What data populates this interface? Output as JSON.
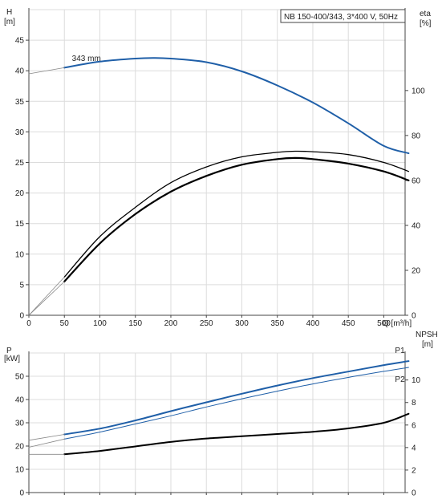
{
  "chart_data": [
    {
      "type": "line",
      "title": "NB 150-400/343, 3*400 V, 50Hz",
      "xlabel": "Q [m³/h]",
      "xlim": [
        0,
        530
      ],
      "xticks": [
        0,
        50,
        100,
        150,
        200,
        250,
        300,
        350,
        400,
        450,
        500
      ],
      "grid": true,
      "left_axis": {
        "label_line1": "H",
        "label_line2": "[m]",
        "ylim": [
          0,
          50
        ],
        "ticks": [
          0,
          5,
          10,
          15,
          20,
          25,
          30,
          35,
          40,
          45
        ]
      },
      "right_axis": {
        "label_line1": "eta",
        "label_line2": "[%]",
        "ylim": [
          0,
          136
        ],
        "ticks": [
          0,
          20,
          40,
          60,
          80,
          100
        ]
      },
      "annotations": [
        {
          "text": "343 mm",
          "x": 55,
          "y": 41.2
        }
      ],
      "series": [
        {
          "axis": "left",
          "color": "#1f5fa8",
          "width": 2,
          "x": [
            50,
            100,
            150,
            175,
            200,
            250,
            300,
            350,
            400,
            450,
            500,
            535
          ],
          "y": [
            40.5,
            41.5,
            42.0,
            42.1,
            42.0,
            41.4,
            39.9,
            37.6,
            34.8,
            31.4,
            27.7,
            26.5
          ]
        },
        {
          "axis": "left",
          "color": "#888888",
          "width": 0.8,
          "x": [
            0,
            50
          ],
          "y": [
            39.5,
            40.5
          ]
        },
        {
          "axis": "right",
          "color": "#000000",
          "width": 1.3,
          "x": [
            50,
            100,
            150,
            200,
            250,
            300,
            350,
            375,
            400,
            450,
            500,
            535
          ],
          "y": [
            17,
            35,
            48,
            59,
            66,
            70.5,
            72.5,
            73,
            72.8,
            71.5,
            68,
            64
          ]
        },
        {
          "axis": "right",
          "color": "#000000",
          "width": 2.2,
          "x": [
            50,
            100,
            150,
            200,
            250,
            300,
            350,
            375,
            400,
            450,
            500,
            535
          ],
          "y": [
            15,
            32,
            45,
            55,
            62,
            67,
            69.5,
            70,
            69.5,
            67.5,
            64,
            60
          ]
        },
        {
          "axis": "right",
          "color": "#888888",
          "width": 0.8,
          "x": [
            0,
            50
          ],
          "y": [
            0,
            17
          ]
        },
        {
          "axis": "right",
          "color": "#888888",
          "width": 0.8,
          "x": [
            0,
            50
          ],
          "y": [
            0,
            15
          ]
        }
      ]
    },
    {
      "type": "line",
      "xlim": [
        0,
        530
      ],
      "xticks": [
        0,
        50,
        100,
        150,
        200,
        250,
        300,
        350,
        400,
        450,
        500
      ],
      "grid": true,
      "left_axis": {
        "label_line1": "P",
        "label_line2": "[kW]",
        "ylim": [
          0,
          60
        ],
        "ticks": [
          0,
          10,
          20,
          30,
          40,
          50
        ]
      },
      "right_axis": {
        "label_line1": "NPSH",
        "label_line2": "[m]",
        "ylim": [
          0,
          12.4
        ],
        "ticks": [
          0,
          2,
          4,
          6,
          8,
          10
        ]
      },
      "series": [
        {
          "name": "P1",
          "axis": "left",
          "color": "#1f5fa8",
          "width": 2,
          "x": [
            50,
            100,
            150,
            200,
            250,
            300,
            350,
            400,
            450,
            500,
            535
          ],
          "y": [
            25,
            27.5,
            31,
            35,
            38.8,
            42.5,
            46,
            49.2,
            52,
            54.8,
            56.5
          ]
        },
        {
          "name": "P2",
          "axis": "left",
          "color": "#1f5fa8",
          "width": 1,
          "x": [
            50,
            100,
            150,
            200,
            250,
            300,
            350,
            400,
            450,
            500,
            535
          ],
          "y": [
            23,
            26,
            29.5,
            33,
            36.8,
            40.3,
            43.6,
            46.7,
            49.5,
            52.1,
            53.8
          ]
        },
        {
          "axis": "right",
          "color": "#000000",
          "width": 2,
          "x": [
            50,
            100,
            150,
            200,
            250,
            300,
            350,
            400,
            450,
            500,
            535
          ],
          "y": [
            3.4,
            3.7,
            4.1,
            4.5,
            4.8,
            5.0,
            5.2,
            5.4,
            5.7,
            6.2,
            7.0
          ]
        },
        {
          "axis": "left",
          "color": "#888888",
          "width": 0.8,
          "x": [
            0,
            50
          ],
          "y": [
            22.5,
            25
          ]
        },
        {
          "axis": "left",
          "color": "#888888",
          "width": 0.8,
          "x": [
            0,
            50
          ],
          "y": [
            19.5,
            23
          ]
        },
        {
          "axis": "right",
          "color": "#888888",
          "width": 0.8,
          "x": [
            0,
            50
          ],
          "y": [
            3.4,
            3.4
          ]
        }
      ]
    }
  ]
}
